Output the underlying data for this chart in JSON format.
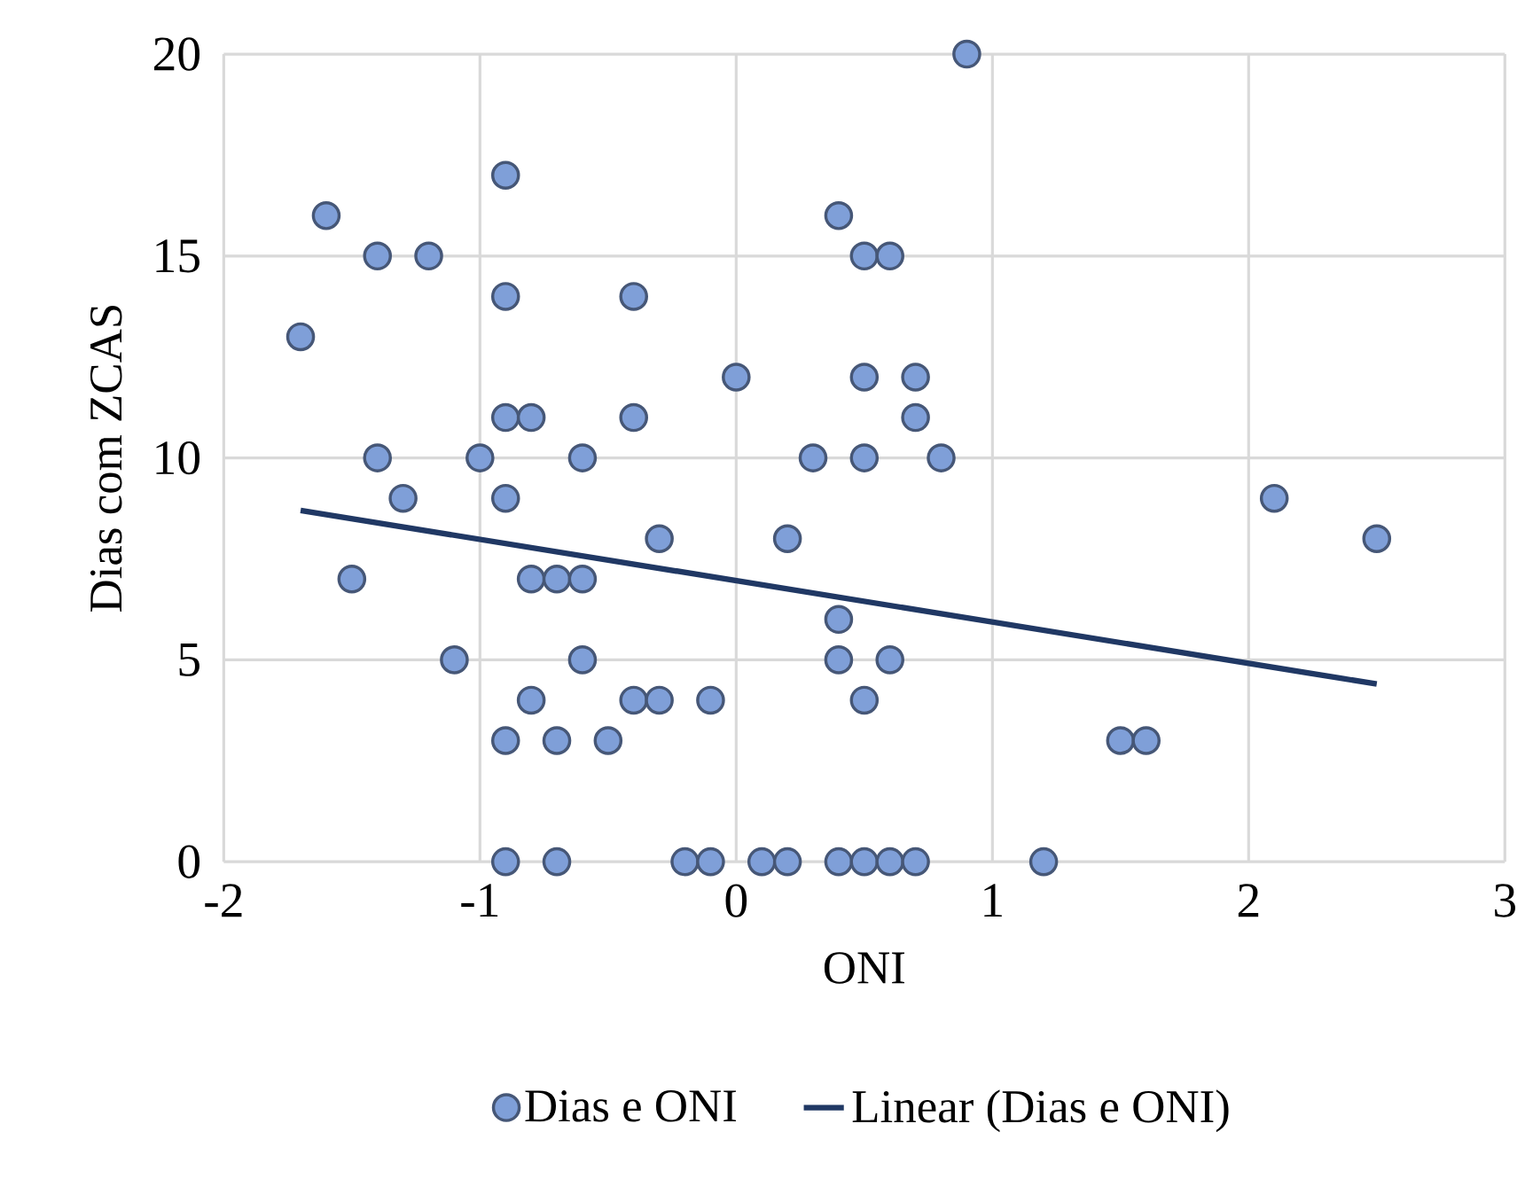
{
  "chart_data": {
    "type": "scatter",
    "xlabel": "ONI",
    "ylabel": "Dias com ZCAS",
    "xlim": [
      -2,
      3
    ],
    "ylim": [
      0,
      20
    ],
    "xticks": [
      -2,
      -1,
      0,
      1,
      2,
      3
    ],
    "yticks": [
      0,
      5,
      10,
      15,
      20
    ],
    "grid": true,
    "legend": "bottom",
    "marker": "circle",
    "series": [
      {
        "name": "Dias e ONI",
        "color": "#7f9fd8",
        "x": [
          -1.7,
          -1.6,
          -1.4,
          -1.2,
          -0.9,
          -0.9,
          -0.4,
          -1.4,
          -1.5,
          -1.3,
          -1.0,
          -0.9,
          -0.8,
          -0.4,
          -0.6,
          -0.9,
          -0.3,
          -0.8,
          -0.7,
          -0.6,
          -1.1,
          -0.6,
          -0.8,
          -0.4,
          -0.3,
          -0.1,
          -0.9,
          -0.7,
          -0.5,
          -0.9,
          -0.7,
          -0.2,
          -0.1,
          0.0,
          0.1,
          0.2,
          0.2,
          0.3,
          0.4,
          0.5,
          0.6,
          0.5,
          0.7,
          0.7,
          0.5,
          0.8,
          0.4,
          0.4,
          0.6,
          0.5,
          0.4,
          0.5,
          0.6,
          0.7,
          1.2,
          0.9,
          1.5,
          1.6,
          2.1,
          2.5
        ],
        "values": [
          13,
          16,
          15,
          15,
          17,
          14,
          14,
          10,
          7,
          9,
          10,
          11,
          11,
          11,
          10,
          9,
          8,
          7,
          7,
          7,
          5,
          5,
          4,
          4,
          4,
          4,
          3,
          3,
          3,
          0,
          0,
          0,
          0,
          12,
          0,
          0,
          8,
          10,
          16,
          15,
          15,
          12,
          12,
          11,
          10,
          10,
          6,
          5,
          5,
          4,
          0,
          0,
          0,
          0,
          0,
          20,
          3,
          3,
          9,
          8
        ]
      },
      {
        "name": "Linear (Dias e ONI)",
        "type": "line",
        "color": "#203864",
        "marker": "none",
        "line_style": "solid",
        "x": [
          -1.7,
          2.5
        ],
        "values": [
          8.7,
          4.4
        ]
      }
    ]
  }
}
